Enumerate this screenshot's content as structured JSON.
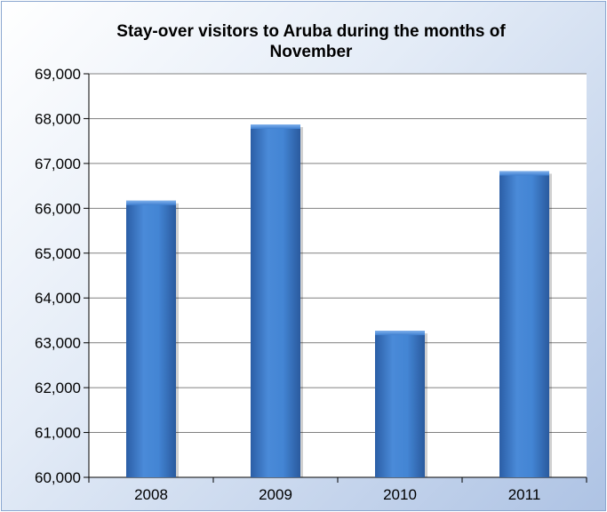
{
  "chart_data": {
    "type": "bar",
    "title": "Stay-over visitors to Aruba during the months of November",
    "xlabel": "",
    "ylabel": "",
    "categories": [
      "2008",
      "2009",
      "2010",
      "2011"
    ],
    "values": [
      66170,
      67870,
      63270,
      66830
    ],
    "ylim": [
      60000,
      69000
    ],
    "ytick_labels": [
      "60,000",
      "61,000",
      "62,000",
      "63,000",
      "64,000",
      "65,000",
      "66,000",
      "67,000",
      "68,000",
      "69,000"
    ],
    "grid": true,
    "legend": "none",
    "colors": {
      "bar": "#3f7fd0",
      "bar_dark": "#2a5ea6",
      "gridline": "#808080",
      "background_light": "#ffffff",
      "background_dark": "#aec3e4"
    }
  }
}
